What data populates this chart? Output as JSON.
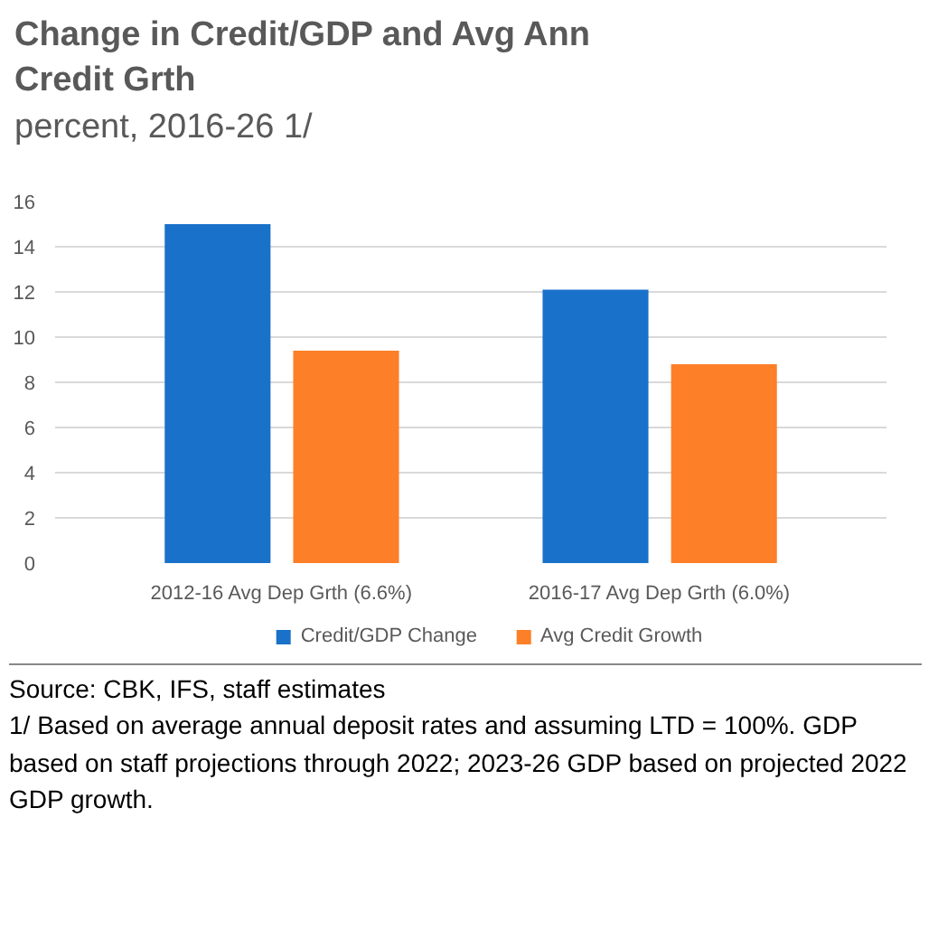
{
  "chart_data": {
    "type": "bar",
    "title": "Change in Credit/GDP and Avg Ann Credit Grth",
    "subtitle": "percent, 2016-26 1/",
    "categories": [
      "2012-16 Avg Dep Grth (6.6%)",
      "2016-17 Avg Dep Grth (6.0%)"
    ],
    "series": [
      {
        "name": "Credit/GDP Change",
        "color": "#1971c9",
        "values": [
          15.0,
          12.1
        ]
      },
      {
        "name": "Avg Credit Growth",
        "color": "#fd7f27",
        "values": [
          9.4,
          8.8
        ]
      }
    ],
    "ylim": [
      0,
      16
    ],
    "yticks": [
      0,
      2,
      4,
      6,
      8,
      10,
      12,
      14,
      16
    ],
    "grid": "y",
    "legend": "bottom",
    "annotations": [
      "Source: CBK, IFS, staff estimates",
      "1/ Based on average annual deposit rates and assuming LTD = 100%. GDP based on staff projections through 2022; 2023-26 GDP based on projected 2022 GDP growth."
    ]
  }
}
